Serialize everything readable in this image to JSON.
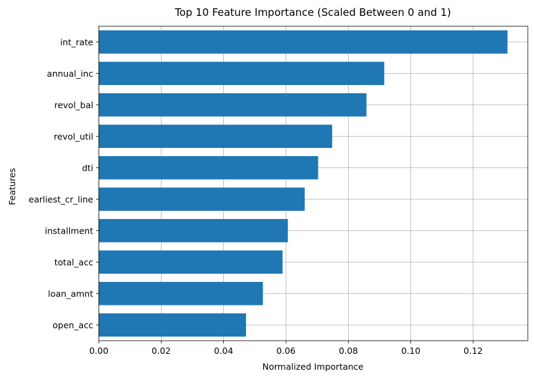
{
  "chart_data": {
    "type": "bar",
    "orientation": "horizontal",
    "title": "Top 10 Feature Importance (Scaled Between 0 and 1)",
    "xlabel": "Normalized Importance",
    "ylabel": "Features",
    "categories": [
      "int_rate",
      "annual_inc",
      "revol_bal",
      "revol_util",
      "dti",
      "earliest_cr_line",
      "installment",
      "total_acc",
      "loan_amnt",
      "open_acc"
    ],
    "values": [
      0.131,
      0.0915,
      0.0858,
      0.0748,
      0.0703,
      0.066,
      0.0606,
      0.0589,
      0.0526,
      0.0472
    ],
    "xlim": [
      0,
      0.1375
    ],
    "xticks": [
      "0.00",
      "0.02",
      "0.04",
      "0.06",
      "0.08",
      "0.10",
      "0.12"
    ],
    "grid": true,
    "bar_color": "#1f77b4",
    "grid_color": "#b0b0b0"
  }
}
